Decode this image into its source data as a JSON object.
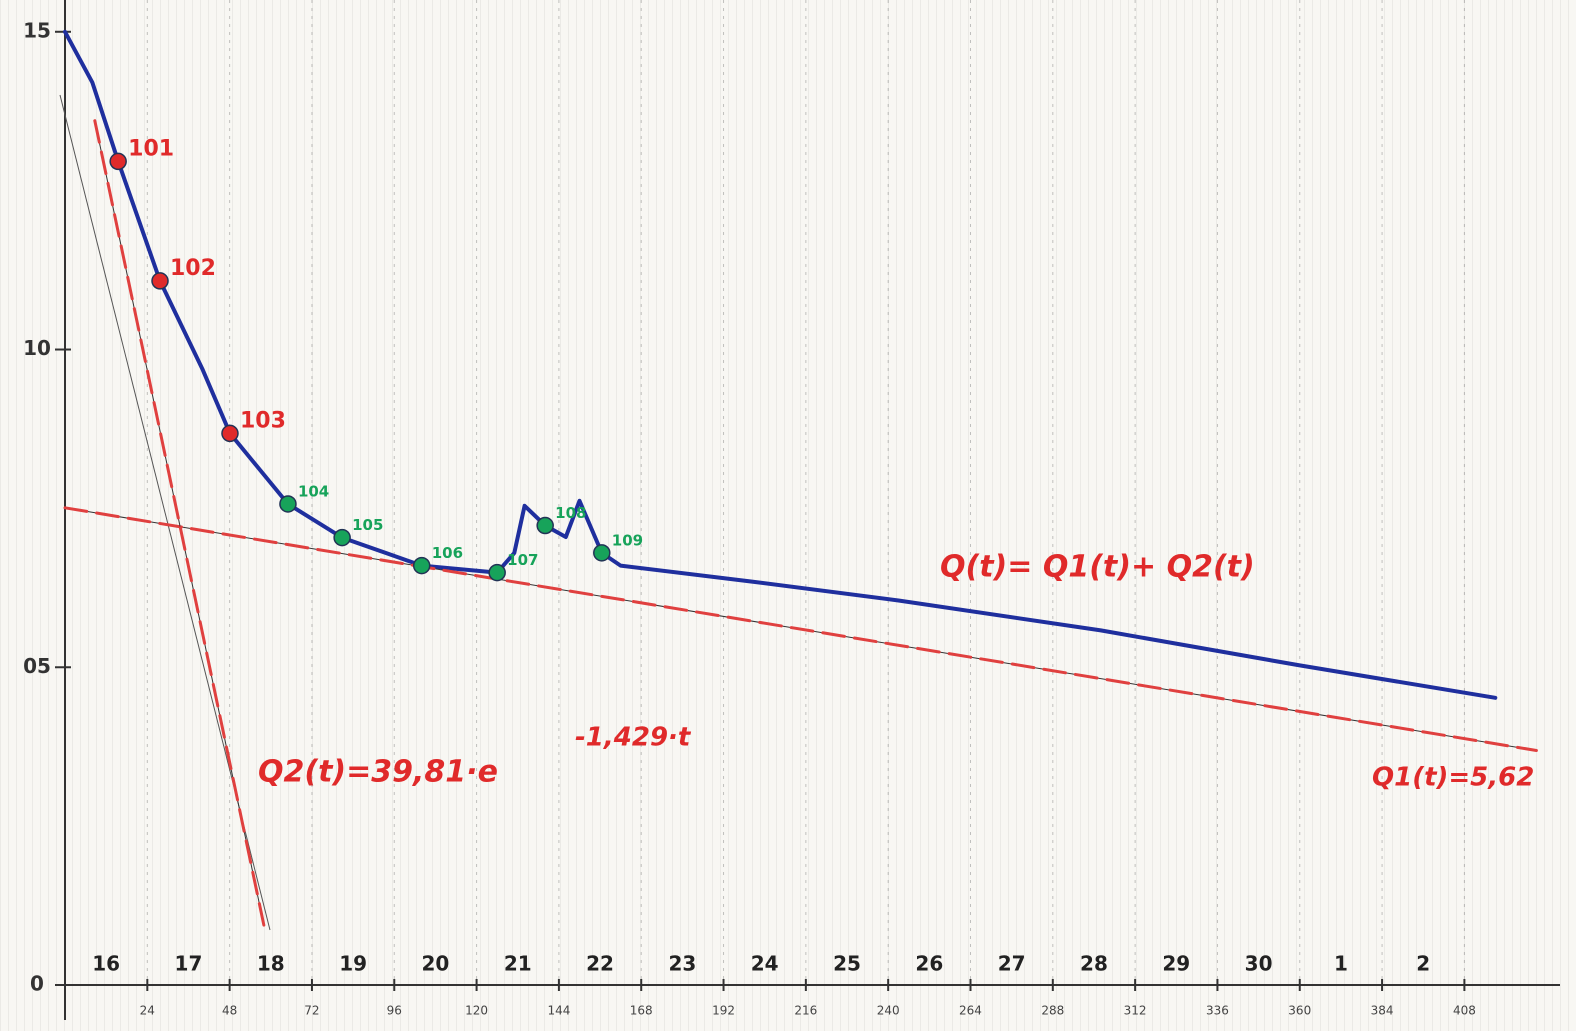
{
  "chart_data": {
    "type": "line",
    "xlim": [
      0,
      435
    ],
    "ylim": [
      0,
      15.5
    ],
    "xticks": [
      24,
      48,
      72,
      96,
      120,
      144,
      168,
      192,
      216,
      240,
      264,
      288,
      312,
      336,
      360,
      384,
      408
    ],
    "yticks": [
      0,
      {
        "value": 5,
        "label": "05"
      },
      10,
      15
    ],
    "day_labels": [
      "16",
      "17",
      "18",
      "19",
      "20",
      "21",
      "22",
      "23",
      "24",
      "25",
      "26",
      "27",
      "28",
      "29",
      "30",
      "1",
      "2"
    ],
    "series": [
      {
        "color": "#1f2f9e",
        "line_style": "solid",
        "x": [
          0,
          8,
          15.5,
          27.7,
          40,
          48.1,
          65,
          80.8,
          104,
          126,
          131,
          134,
          140,
          146,
          150,
          156.5,
          162,
          200,
          243,
          302,
          360,
          417
        ],
        "values": [
          15,
          14.2,
          12.96,
          11.08,
          9.7,
          8.68,
          7.57,
          7.04,
          6.6,
          6.49,
          6.8,
          7.54,
          7.23,
          7.05,
          7.62,
          6.8,
          6.6,
          6.35,
          6.05,
          5.58,
          5.03,
          4.52
        ]
      },
      {
        "color": "#e0403f",
        "line_style": "dashed",
        "x": [
          0,
          429
        ],
        "values": [
          7.51,
          3.69
        ]
      },
      {
        "color": "#e0403f",
        "line_style": "dashed",
        "x": [
          8.7,
          58
        ],
        "values": [
          13.6,
          0.94
        ]
      }
    ],
    "points": {
      "x": [
        15.5,
        27.7,
        48.1,
        65,
        80.8,
        104,
        126,
        140,
        156.5
      ],
      "values": [
        12.96,
        11.08,
        8.68,
        7.57,
        7.04,
        6.6,
        6.49,
        7.23,
        6.8
      ],
      "labels": [
        "101",
        "102",
        "103",
        "104",
        "105",
        "106",
        "107",
        "108",
        "109"
      ],
      "colors": [
        "#e02a2a",
        "#e02a2a",
        "#e02a2a",
        "#17a35a",
        "#17a35a",
        "#17a35a",
        "#17a35a",
        "#17a35a",
        "#17a35a"
      ]
    },
    "annotations": {
      "total": "Q(t)= Q1(t)+ Q2(t)",
      "q2": "Q2(t)=39,81·e",
      "q2_exponent": "-1,429·t",
      "q1": "Q1(t)=5,62"
    }
  }
}
